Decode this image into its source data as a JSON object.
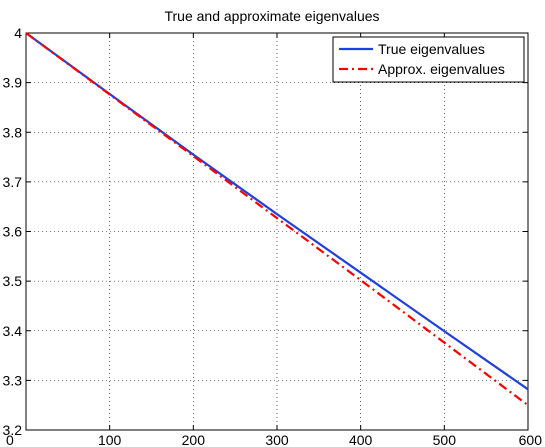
{
  "chart_data": {
    "type": "line",
    "title": "True and approximate eigenvalues",
    "xlabel": "",
    "ylabel": "",
    "xlim": [
      0,
      600
    ],
    "ylim": [
      3.2,
      4.0
    ],
    "x_ticks": [
      0,
      100,
      200,
      300,
      400,
      500,
      600
    ],
    "x_tick_labels": [
      "0",
      "100",
      "200",
      "300",
      "400",
      "500",
      "600"
    ],
    "y_ticks": [
      3.2,
      3.3,
      3.4,
      3.5,
      3.6,
      3.7,
      3.8,
      3.9,
      4.0
    ],
    "y_tick_labels": [
      "3.2",
      "3.3",
      "3.4",
      "3.5",
      "3.6",
      "3.7",
      "3.8",
      "3.9",
      "4"
    ],
    "grid": true,
    "legend_position": "top-right",
    "series": [
      {
        "name": "True eigenvalues",
        "color": "#1f3fdf",
        "style": "solid",
        "x": [
          0,
          100,
          200,
          300,
          400,
          500,
          600
        ],
        "y": [
          4.0,
          3.877,
          3.755,
          3.635,
          3.517,
          3.399,
          3.282
        ]
      },
      {
        "name": "Approx. eigenvalues",
        "color": "#ff0000",
        "style": "dash-dot",
        "x": [
          0,
          100,
          200,
          300,
          400,
          500,
          600
        ],
        "y": [
          4.0,
          3.876,
          3.752,
          3.627,
          3.502,
          3.376,
          3.25
        ]
      }
    ]
  }
}
